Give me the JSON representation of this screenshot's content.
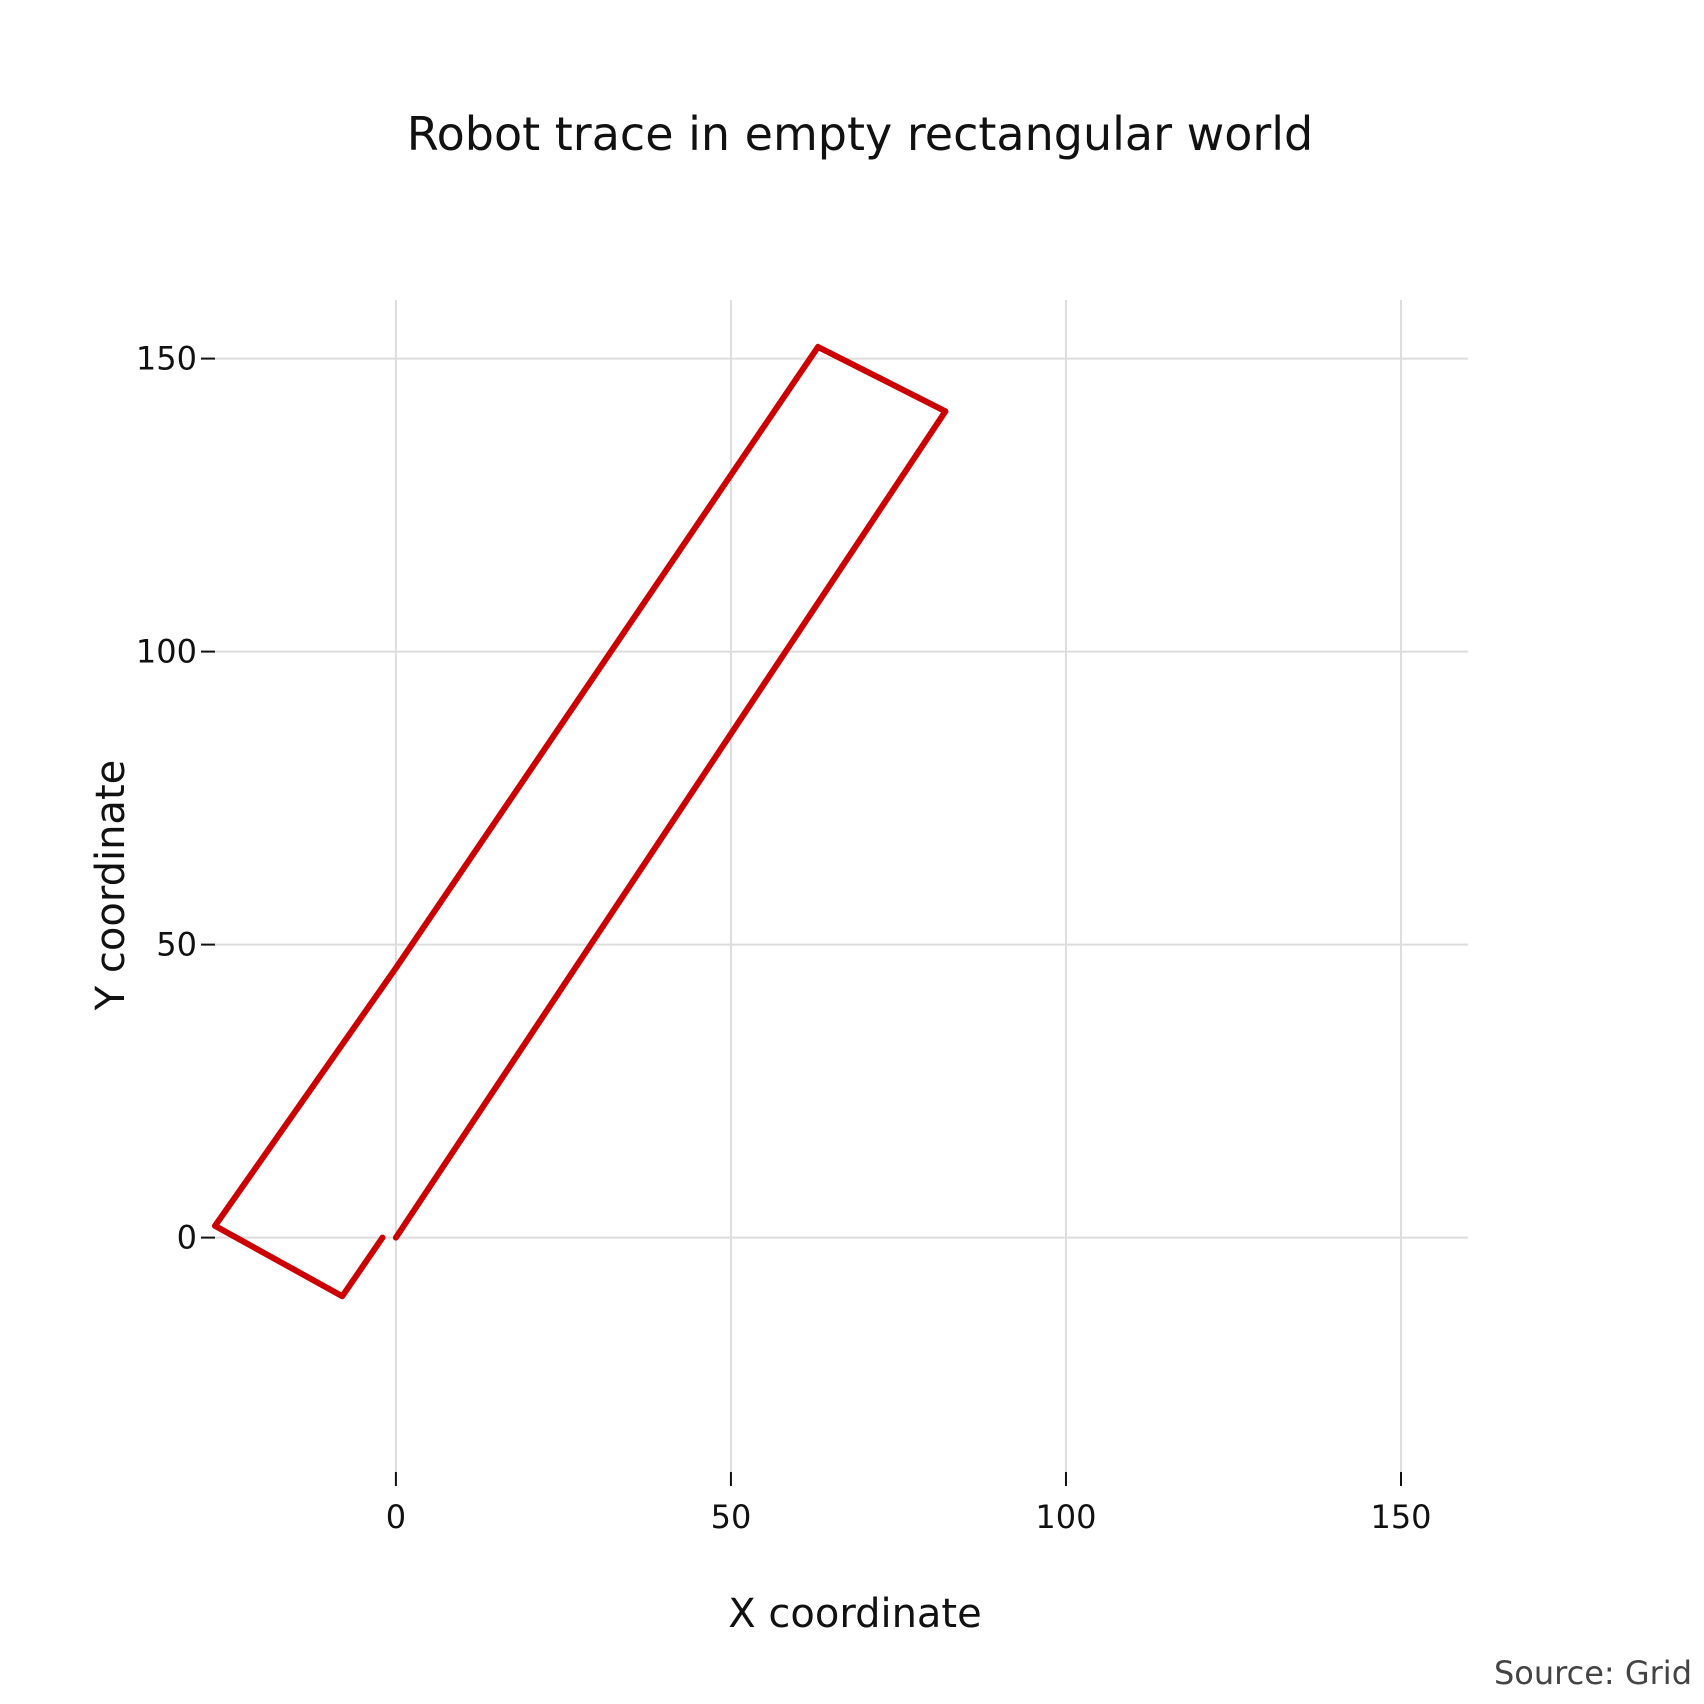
{
  "chart_data": {
    "type": "line",
    "title": "Robot trace in empty rectangular world",
    "xlabel": "X coordinate",
    "ylabel": "Y coordinate",
    "xlim": [
      -27,
      160
    ],
    "ylim": [
      -40,
      160
    ],
    "xticks": [
      0,
      50,
      100,
      150
    ],
    "yticks": [
      0,
      50,
      100,
      150
    ],
    "grid": true,
    "legend": "none",
    "series": [
      {
        "color": "#cc0000",
        "segments": [
          {
            "x": [
              -2,
              -8,
              -27,
              0,
              63,
              82,
              0
            ],
            "y": [
              0,
              -10,
              2,
              46,
              152,
              141,
              0
            ]
          }
        ]
      }
    ],
    "source": "Source: Grid"
  },
  "colors": {
    "grid": "#dddddd",
    "text": "#111111",
    "trace": "#cc0000"
  }
}
